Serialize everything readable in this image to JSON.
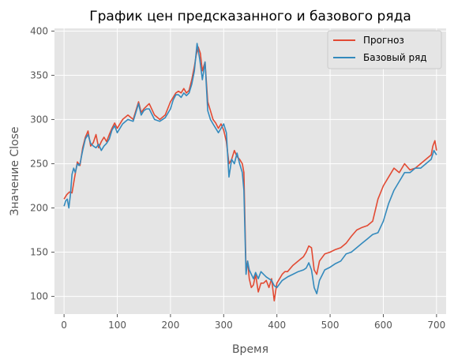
{
  "chart_data": {
    "type": "line",
    "title": "График цен предсказанного и базового ряда",
    "xlabel": "Время",
    "ylabel": "Значение Close",
    "xlim": [
      -18,
      718
    ],
    "ylim": [
      80,
      403
    ],
    "xticks": [
      0,
      100,
      200,
      300,
      400,
      500,
      600,
      700
    ],
    "yticks": [
      100,
      150,
      200,
      250,
      300,
      350,
      400
    ],
    "grid": true,
    "legend_position": "top-right",
    "colors": {
      "plot_bg": "#e5e5e5",
      "grid": "#ffffff",
      "forecast": "#e24a33",
      "base": "#348abd"
    },
    "series": [
      {
        "name": "Прогноз",
        "color": "#e24a33",
        "x": [
          0,
          5,
          10,
          15,
          20,
          25,
          30,
          35,
          40,
          45,
          50,
          55,
          60,
          65,
          70,
          75,
          80,
          85,
          90,
          95,
          100,
          110,
          120,
          130,
          140,
          145,
          150,
          155,
          160,
          170,
          180,
          190,
          200,
          205,
          210,
          215,
          220,
          225,
          230,
          235,
          240,
          245,
          248,
          252,
          256,
          260,
          265,
          270,
          275,
          280,
          285,
          290,
          295,
          300,
          305,
          310,
          315,
          320,
          325,
          330,
          335,
          338,
          342,
          345,
          348,
          352,
          356,
          360,
          365,
          370,
          375,
          380,
          385,
          390,
          395,
          400,
          405,
          410,
          415,
          420,
          430,
          440,
          450,
          455,
          460,
          465,
          470,
          475,
          480,
          490,
          500,
          510,
          520,
          530,
          540,
          550,
          560,
          570,
          580,
          590,
          600,
          610,
          620,
          630,
          640,
          650,
          660,
          670,
          680,
          690,
          693,
          697,
          700
        ],
        "y": [
          210,
          215,
          218,
          217,
          235,
          252,
          248,
          268,
          280,
          287,
          270,
          274,
          283,
          268,
          275,
          280,
          275,
          283,
          290,
          296,
          290,
          300,
          305,
          300,
          320,
          308,
          312,
          315,
          318,
          305,
          300,
          305,
          320,
          325,
          330,
          332,
          330,
          335,
          330,
          333,
          345,
          360,
          372,
          382,
          375,
          355,
          365,
          320,
          310,
          300,
          296,
          290,
          295,
          288,
          275,
          250,
          255,
          265,
          258,
          255,
          250,
          240,
          130,
          140,
          120,
          110,
          113,
          125,
          105,
          115,
          115,
          118,
          110,
          120,
          95,
          115,
          120,
          125,
          128,
          128,
          135,
          140,
          145,
          150,
          157,
          155,
          130,
          125,
          140,
          148,
          150,
          153,
          155,
          160,
          168,
          175,
          178,
          180,
          185,
          210,
          225,
          235,
          245,
          240,
          250,
          243,
          245,
          250,
          255,
          260,
          270,
          276,
          265
        ]
      },
      {
        "name": "Базовый ряд",
        "color": "#348abd",
        "x": [
          0,
          3,
          6,
          9,
          12,
          15,
          18,
          21,
          25,
          28,
          30,
          35,
          40,
          45,
          50,
          55,
          60,
          65,
          70,
          75,
          80,
          85,
          90,
          95,
          100,
          110,
          120,
          130,
          140,
          145,
          150,
          155,
          160,
          170,
          180,
          190,
          200,
          205,
          210,
          215,
          220,
          225,
          230,
          235,
          240,
          245,
          250,
          255,
          260,
          265,
          270,
          275,
          280,
          285,
          290,
          295,
          300,
          305,
          310,
          315,
          320,
          325,
          330,
          335,
          338,
          340,
          342,
          345,
          348,
          352,
          356,
          360,
          365,
          370,
          375,
          380,
          385,
          390,
          395,
          400,
          410,
          420,
          430,
          440,
          450,
          455,
          460,
          465,
          470,
          475,
          480,
          490,
          500,
          510,
          520,
          530,
          540,
          550,
          560,
          570,
          580,
          590,
          600,
          610,
          620,
          630,
          640,
          650,
          660,
          670,
          680,
          690,
          695,
          700
        ],
        "y": [
          202,
          208,
          210,
          200,
          215,
          238,
          245,
          240,
          250,
          248,
          250,
          265,
          278,
          283,
          273,
          270,
          268,
          272,
          265,
          270,
          273,
          278,
          288,
          293,
          285,
          295,
          300,
          298,
          318,
          305,
          310,
          312,
          312,
          300,
          298,
          302,
          312,
          322,
          328,
          328,
          325,
          330,
          327,
          330,
          340,
          355,
          386,
          368,
          345,
          365,
          310,
          300,
          295,
          290,
          285,
          290,
          295,
          285,
          235,
          255,
          250,
          262,
          250,
          240,
          220,
          170,
          125,
          140,
          130,
          125,
          120,
          127,
          120,
          128,
          125,
          122,
          120,
          118,
          112,
          110,
          118,
          122,
          125,
          128,
          130,
          132,
          138,
          130,
          110,
          103,
          118,
          130,
          133,
          137,
          140,
          148,
          150,
          155,
          160,
          165,
          170,
          172,
          185,
          205,
          220,
          230,
          240,
          240,
          245,
          245,
          250,
          255,
          265,
          260
        ]
      }
    ]
  }
}
